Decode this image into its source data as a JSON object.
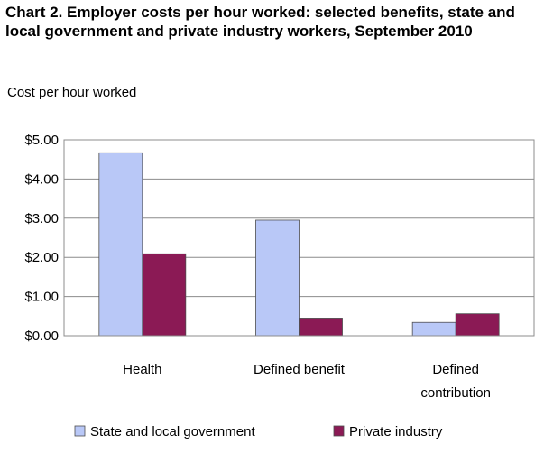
{
  "chart_data": {
    "type": "bar",
    "title": "Chart 2. Employer costs per hour worked: selected benefits, state and local government and private industry workers, September 2010",
    "ylabel": "Cost per hour worked",
    "xlabel": "",
    "categories": [
      [
        "Health"
      ],
      [
        "Defined benefit"
      ],
      [
        "Defined",
        "contribution"
      ]
    ],
    "series": [
      {
        "name": "State and local government",
        "values": [
          4.67,
          2.95,
          0.34
        ],
        "color": "#b9c8f7"
      },
      {
        "name": "Private industry",
        "values": [
          2.09,
          0.45,
          0.56
        ],
        "color": "#8b1a55"
      }
    ],
    "ylim": [
      0,
      5
    ],
    "yticks": [
      {
        "value": 0,
        "label": "$0.00"
      },
      {
        "value": 1,
        "label": "$1.00"
      },
      {
        "value": 2,
        "label": "$2.00"
      },
      {
        "value": 3,
        "label": "$3.00"
      },
      {
        "value": 4,
        "label": "$4.00"
      },
      {
        "value": 5,
        "label": "$5.00"
      }
    ],
    "grid": true,
    "legend_position": "bottom"
  }
}
